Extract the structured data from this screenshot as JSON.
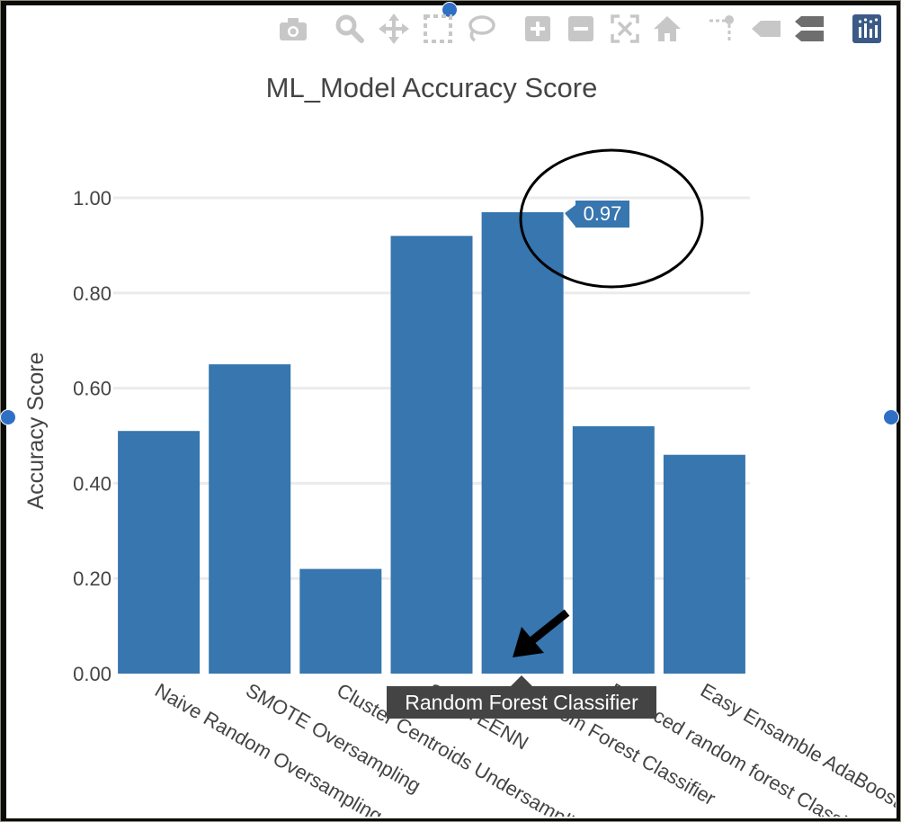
{
  "modebar": {
    "buttons": [
      {
        "icon": "camera-icon",
        "label": "Download plot as a png"
      },
      {
        "icon": "zoom-icon",
        "label": "Zoom"
      },
      {
        "icon": "pan-icon",
        "label": "Pan"
      },
      {
        "icon": "box-select-icon",
        "label": "Box Select"
      },
      {
        "icon": "lasso-select-icon",
        "label": "Lasso Select"
      },
      {
        "icon": "zoom-in-icon",
        "label": "Zoom in"
      },
      {
        "icon": "zoom-out-icon",
        "label": "Zoom out"
      },
      {
        "icon": "autoscale-icon",
        "label": "Autoscale"
      },
      {
        "icon": "reset-axes-icon",
        "label": "Reset axes"
      },
      {
        "icon": "spike-lines-icon",
        "label": "Toggle Spike Lines"
      },
      {
        "icon": "hover-closest-icon",
        "label": "Show closest data on hover"
      },
      {
        "icon": "hover-compare-icon",
        "label": "Compare data on hover"
      },
      {
        "icon": "plotly-logo-icon",
        "label": "Produced with Plotly"
      }
    ]
  },
  "colors": {
    "bar": "#3776af",
    "grid": "#ebebeb",
    "axis_text": "#444444",
    "modebar_icon": "#c7c7c7",
    "annotation": "#000000",
    "hover_bg": "#444444"
  },
  "chart_data": {
    "type": "bar",
    "title": "ML_Model Accuracy Score",
    "xlabel": "",
    "ylabel": "Accuracy Score",
    "ylim": [
      0,
      1.1
    ],
    "yticks": [
      "0.00",
      "0.20",
      "0.40",
      "0.60",
      "0.80",
      "1.00"
    ],
    "grid": true,
    "categories": [
      "Naive Random Oversampling",
      "SMOTE Oversampling",
      "Cluster Centroids Undersampling",
      "SMOTEENN",
      "Random Forest Classifier",
      "Balanced random forest Classifier",
      "Easy Ensamble AdaBoost"
    ],
    "values": [
      0.51,
      0.65,
      0.22,
      0.92,
      0.97,
      0.52,
      0.46
    ],
    "hover": {
      "category": "Random Forest Classifier",
      "value_label": "0.97"
    }
  }
}
